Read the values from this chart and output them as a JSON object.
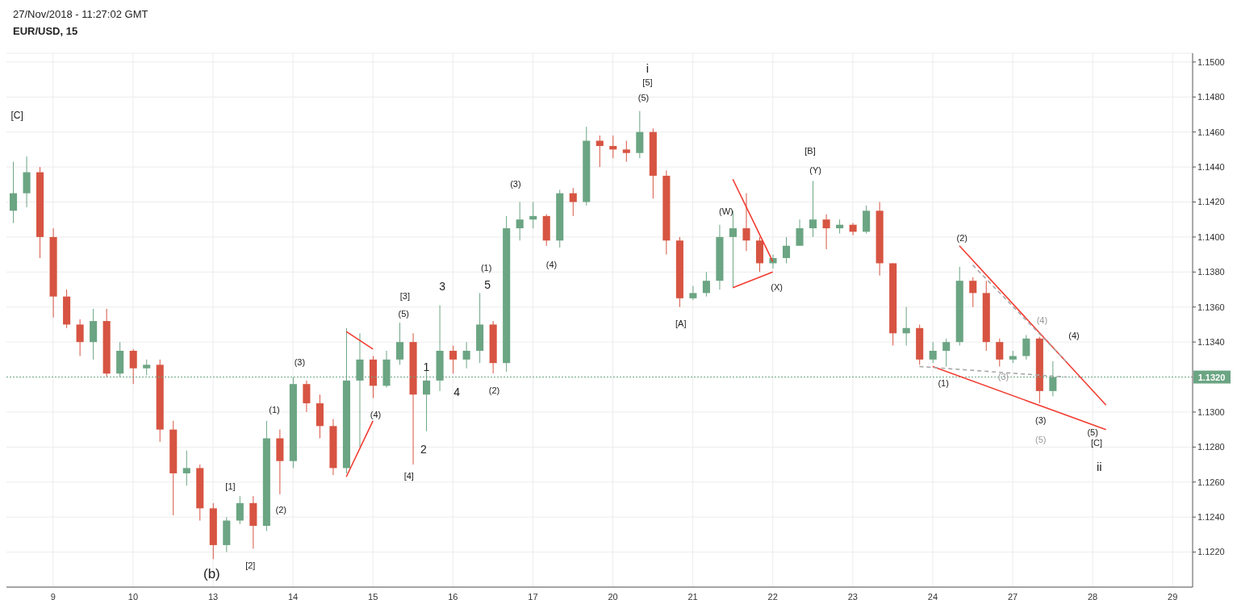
{
  "chart_data": {
    "type": "candlestick",
    "title": "EUR/USD, 15",
    "categories": [
      null,
      null,
      null,
      "9",
      null,
      null,
      null,
      null,
      null,
      "10",
      null,
      null,
      null,
      null,
      null,
      "13",
      null,
      null,
      null,
      null,
      null,
      "14",
      null,
      null,
      null,
      null,
      null,
      "15",
      null,
      null,
      null,
      null,
      null,
      "16",
      null,
      null,
      null,
      null,
      null,
      "17",
      null,
      null,
      null,
      null,
      null,
      "20",
      null,
      null,
      null,
      null,
      null,
      "21",
      null,
      null,
      null,
      null,
      null,
      "22",
      null,
      null,
      null,
      null,
      null,
      "23",
      null,
      null,
      null,
      null,
      null,
      "24",
      null,
      null,
      null,
      null,
      null,
      "27",
      null,
      null,
      null,
      null,
      null,
      "28",
      null,
      null,
      null,
      null,
      null,
      "29",
      null
    ],
    "ohlc": [
      [
        1.1415,
        1.1443,
        1.1408,
        1.1425
      ],
      [
        1.1425,
        1.1446,
        1.1417,
        1.1437
      ],
      [
        1.1437,
        1.144,
        1.1388,
        1.14
      ],
      [
        1.14,
        1.1405,
        1.1354,
        1.1366
      ],
      [
        1.1366,
        1.137,
        1.1348,
        1.135
      ],
      [
        1.135,
        1.1353,
        1.1332,
        1.134
      ],
      [
        1.134,
        1.1359,
        1.133,
        1.1352
      ],
      [
        1.1352,
        1.1359,
        1.132,
        1.1322
      ],
      [
        1.1322,
        1.134,
        1.132,
        1.1335
      ],
      [
        1.1335,
        1.1336,
        1.1316,
        1.1325
      ],
      [
        1.1325,
        1.133,
        1.1321,
        1.1327
      ],
      [
        1.1327,
        1.133,
        1.1283,
        1.129
      ],
      [
        1.129,
        1.1295,
        1.1241,
        1.1265
      ],
      [
        1.1265,
        1.1278,
        1.1258,
        1.1268
      ],
      [
        1.1268,
        1.127,
        1.1238,
        1.1245
      ],
      [
        1.1245,
        1.1248,
        1.1216,
        1.1224
      ],
      [
        1.1224,
        1.124,
        1.122,
        1.1238
      ],
      [
        1.1238,
        1.1252,
        1.1236,
        1.1248
      ],
      [
        1.1248,
        1.1252,
        1.1222,
        1.1235
      ],
      [
        1.1235,
        1.1295,
        1.1232,
        1.1285
      ],
      [
        1.1285,
        1.129,
        1.1253,
        1.1272
      ],
      [
        1.1272,
        1.132,
        1.1268,
        1.1316
      ],
      [
        1.1316,
        1.1318,
        1.13,
        1.1305
      ],
      [
        1.1305,
        1.131,
        1.1285,
        1.1292
      ],
      [
        1.1292,
        1.1296,
        1.1264,
        1.1268
      ],
      [
        1.1268,
        1.1348,
        1.1265,
        1.1318
      ],
      [
        1.1318,
        1.1345,
        1.128,
        1.133
      ],
      [
        1.133,
        1.1332,
        1.1308,
        1.1315
      ],
      [
        1.1315,
        1.1335,
        1.1314,
        1.133
      ],
      [
        1.133,
        1.1351,
        1.1327,
        1.134
      ],
      [
        1.134,
        1.1345,
        1.127,
        1.131
      ],
      [
        1.131,
        1.1325,
        1.1289,
        1.1318
      ],
      [
        1.1318,
        1.1361,
        1.1312,
        1.1335
      ],
      [
        1.1335,
        1.1338,
        1.1322,
        1.133
      ],
      [
        1.133,
        1.134,
        1.1325,
        1.1335
      ],
      [
        1.1335,
        1.1368,
        1.1328,
        1.135
      ],
      [
        1.135,
        1.1352,
        1.1322,
        1.1328
      ],
      [
        1.1328,
        1.1412,
        1.1323,
        1.1405
      ],
      [
        1.1405,
        1.142,
        1.1398,
        1.141
      ],
      [
        1.141,
        1.142,
        1.1405,
        1.1412
      ],
      [
        1.1412,
        1.1413,
        1.1395,
        1.1398
      ],
      [
        1.1398,
        1.1427,
        1.1394,
        1.1425
      ],
      [
        1.1425,
        1.1428,
        1.1412,
        1.142
      ],
      [
        1.142,
        1.1463,
        1.1418,
        1.1455
      ],
      [
        1.1455,
        1.1458,
        1.144,
        1.1452
      ],
      [
        1.1452,
        1.1458,
        1.1445,
        1.145
      ],
      [
        1.145,
        1.1455,
        1.1443,
        1.1448
      ],
      [
        1.1448,
        1.1472,
        1.1445,
        1.146
      ],
      [
        1.146,
        1.1462,
        1.1422,
        1.1435
      ],
      [
        1.1435,
        1.1438,
        1.139,
        1.1398
      ],
      [
        1.1398,
        1.14,
        1.136,
        1.1365
      ],
      [
        1.1365,
        1.1372,
        1.1364,
        1.1368
      ],
      [
        1.1368,
        1.138,
        1.1366,
        1.1375
      ],
      [
        1.1375,
        1.1407,
        1.137,
        1.14
      ],
      [
        1.14,
        1.1415,
        1.1371,
        1.1405
      ],
      [
        1.1405,
        1.1425,
        1.1392,
        1.1398
      ],
      [
        1.1398,
        1.14,
        1.138,
        1.1385
      ],
      [
        1.1385,
        1.139,
        1.1382,
        1.1388
      ],
      [
        1.1388,
        1.14,
        1.1385,
        1.1395
      ],
      [
        1.1395,
        1.141,
        1.1395,
        1.1405
      ],
      [
        1.1405,
        1.1432,
        1.14,
        1.141
      ],
      [
        1.141,
        1.1413,
        1.1393,
        1.1405
      ],
      [
        1.1405,
        1.141,
        1.1402,
        1.1407
      ],
      [
        1.1407,
        1.1408,
        1.1401,
        1.1403
      ],
      [
        1.1403,
        1.1418,
        1.1402,
        1.1415
      ],
      [
        1.1415,
        1.142,
        1.1378,
        1.1385
      ],
      [
        1.1385,
        1.1385,
        1.1338,
        1.1345
      ],
      [
        1.1345,
        1.136,
        1.1338,
        1.1348
      ],
      [
        1.1348,
        1.135,
        1.1327,
        1.133
      ],
      [
        1.133,
        1.134,
        1.1328,
        1.1335
      ],
      [
        1.1335,
        1.1342,
        1.1326,
        1.134
      ],
      [
        1.134,
        1.1383,
        1.1338,
        1.1375
      ],
      [
        1.1375,
        1.1377,
        1.136,
        1.1368
      ],
      [
        1.1368,
        1.1375,
        1.1335,
        1.134
      ],
      [
        1.134,
        1.1342,
        1.1326,
        1.133
      ],
      [
        1.133,
        1.1335,
        1.1328,
        1.1332
      ],
      [
        1.1332,
        1.1344,
        1.133,
        1.1342
      ],
      [
        1.1342,
        1.1343,
        1.1305,
        1.1312
      ],
      [
        1.1312,
        1.1329,
        1.1309,
        1.132
      ],
      null,
      null,
      null,
      null,
      null,
      null,
      null,
      null,
      null,
      null
    ],
    "colors": [
      "#6ba583",
      "#6ba583",
      "#d75442",
      "#d75442",
      "#d75442",
      "#d75442",
      "#6ba583",
      "#d75442",
      "#6ba583",
      "#d75442",
      "#6ba583",
      "#d75442",
      "#d75442",
      "#6ba583",
      "#d75442",
      "#d75442",
      "#6ba583",
      "#6ba583",
      "#d75442",
      "#6ba583",
      "#d75442",
      "#6ba583",
      "#d75442",
      "#d75442",
      "#d75442",
      "#6ba583",
      "#6ba583",
      "#d75442",
      "#6ba583",
      "#6ba583",
      "#d75442",
      "#6ba583",
      "#6ba583",
      "#d75442",
      "#6ba583",
      "#6ba583",
      "#d75442",
      "#6ba583",
      "#6ba583",
      "#6ba583",
      "#d75442",
      "#6ba583",
      "#d75442",
      "#6ba583",
      "#d75442",
      "#d75442",
      "#d75442",
      "#6ba583",
      "#d75442",
      "#d75442",
      "#d75442",
      "#6ba583",
      "#6ba583",
      "#6ba583",
      "#6ba583",
      "#d75442",
      "#d75442",
      "#6ba583",
      "#6ba583",
      "#6ba583",
      "#6ba583",
      "#d75442",
      "#6ba583",
      "#d75442",
      "#6ba583",
      "#d75442",
      "#d75442",
      "#6ba583",
      "#d75442",
      "#6ba583",
      "#6ba583",
      "#6ba583",
      "#d75442",
      "#d75442",
      "#d75442",
      "#6ba583",
      "#6ba583",
      "#d75442",
      "#6ba583",
      null,
      null,
      null,
      null,
      null,
      null,
      null,
      null,
      null,
      null
    ],
    "series": [
      {
        "type": "line",
        "color": "#f23b30",
        "line_style": "solid",
        "values": [
          null,
          null,
          null,
          null,
          null,
          null,
          null,
          null,
          null,
          null,
          null,
          null,
          null,
          null,
          null,
          null,
          null,
          null,
          null,
          null,
          null,
          null,
          null,
          null,
          null,
          1.1346,
          null,
          1.1336,
          null,
          null,
          null,
          null,
          null,
          null,
          null,
          null,
          null,
          null,
          null,
          null,
          null,
          null,
          null,
          null,
          null,
          null,
          null,
          null,
          null,
          null,
          null,
          null,
          null,
          null,
          null,
          null,
          null,
          null,
          null,
          null,
          null,
          null,
          null,
          null,
          null,
          null,
          null,
          null,
          null,
          null,
          null,
          null,
          null,
          null,
          null,
          null,
          null,
          null,
          null,
          null,
          null,
          null,
          null,
          null,
          null,
          null,
          null,
          null,
          null
        ]
      },
      {
        "type": "line",
        "color": "#f23b30",
        "line_style": "solid",
        "values": [
          null,
          null,
          null,
          null,
          null,
          null,
          null,
          null,
          null,
          null,
          null,
          null,
          null,
          null,
          null,
          null,
          null,
          null,
          null,
          null,
          null,
          null,
          null,
          null,
          null,
          1.1263,
          null,
          1.1295,
          null,
          null,
          null,
          null,
          null,
          null,
          null,
          null,
          null,
          null,
          null,
          null,
          null,
          null,
          null,
          null,
          null,
          null,
          null,
          null,
          null,
          null,
          null,
          null,
          null,
          null,
          null,
          null,
          null,
          null,
          null,
          null,
          null,
          null,
          null,
          null,
          null,
          null,
          null,
          null,
          null,
          null,
          null,
          null,
          null,
          null,
          null,
          null,
          null,
          null,
          null,
          null,
          null,
          null,
          null,
          null,
          null,
          null,
          null,
          null,
          null
        ]
      },
      {
        "type": "line",
        "color": "#f23b30",
        "line_style": "solid",
        "values": [
          null,
          null,
          null,
          null,
          null,
          null,
          null,
          null,
          null,
          null,
          null,
          null,
          null,
          null,
          null,
          null,
          null,
          null,
          null,
          null,
          null,
          null,
          null,
          null,
          null,
          null,
          null,
          null,
          null,
          null,
          null,
          null,
          null,
          null,
          null,
          null,
          null,
          null,
          null,
          null,
          null,
          null,
          null,
          null,
          null,
          null,
          null,
          null,
          null,
          null,
          null,
          null,
          null,
          null,
          1.1433,
          null,
          null,
          1.1386,
          null,
          null,
          null,
          null,
          null,
          null,
          null,
          null,
          null,
          null,
          null,
          null,
          null,
          null,
          null,
          null,
          null,
          null,
          null,
          null,
          null,
          null,
          null,
          null,
          null,
          null,
          null,
          null,
          null,
          null,
          null
        ]
      },
      {
        "type": "line",
        "color": "#f23b30",
        "line_style": "solid",
        "values": [
          null,
          null,
          null,
          null,
          null,
          null,
          null,
          null,
          null,
          null,
          null,
          null,
          null,
          null,
          null,
          null,
          null,
          null,
          null,
          null,
          null,
          null,
          null,
          null,
          null,
          null,
          null,
          null,
          null,
          null,
          null,
          null,
          null,
          null,
          null,
          null,
          null,
          null,
          null,
          null,
          null,
          null,
          null,
          null,
          null,
          null,
          null,
          null,
          null,
          null,
          null,
          null,
          null,
          null,
          1.1371,
          null,
          null,
          1.138,
          null,
          null,
          null,
          null,
          null,
          null,
          null,
          null,
          null,
          null,
          null,
          null,
          null,
          null,
          null,
          null,
          null,
          null,
          null,
          null,
          null,
          null,
          null,
          null,
          null,
          null,
          null,
          null,
          null,
          null,
          null
        ]
      },
      {
        "type": "line",
        "color": "#f23b30",
        "line_style": "solid",
        "values": [
          null,
          null,
          null,
          null,
          null,
          null,
          null,
          null,
          null,
          null,
          null,
          null,
          null,
          null,
          null,
          null,
          null,
          null,
          null,
          null,
          null,
          null,
          null,
          null,
          null,
          null,
          null,
          null,
          null,
          null,
          null,
          null,
          null,
          null,
          null,
          null,
          null,
          null,
          null,
          null,
          null,
          null,
          null,
          null,
          null,
          null,
          null,
          null,
          null,
          null,
          null,
          null,
          null,
          null,
          null,
          null,
          null,
          null,
          null,
          null,
          null,
          null,
          null,
          null,
          null,
          null,
          null,
          null,
          null,
          null,
          null,
          1.1395,
          null,
          null,
          null,
          null,
          null,
          null,
          null,
          null,
          null,
          null,
          1.1304,
          null,
          null,
          null,
          null,
          null,
          null
        ]
      },
      {
        "type": "line",
        "color": "#f23b30",
        "line_style": "solid",
        "values": [
          null,
          null,
          null,
          null,
          null,
          null,
          null,
          null,
          null,
          null,
          null,
          null,
          null,
          null,
          null,
          null,
          null,
          null,
          null,
          null,
          null,
          null,
          null,
          null,
          null,
          null,
          null,
          null,
          null,
          null,
          null,
          null,
          null,
          null,
          null,
          null,
          null,
          null,
          null,
          null,
          null,
          null,
          null,
          null,
          null,
          null,
          null,
          null,
          null,
          null,
          null,
          null,
          null,
          null,
          null,
          null,
          null,
          null,
          null,
          null,
          null,
          null,
          null,
          null,
          null,
          null,
          null,
          null,
          null,
          1.1326,
          null,
          null,
          null,
          null,
          null,
          null,
          null,
          null,
          null,
          null,
          null,
          null,
          1.129,
          null,
          null,
          null,
          null,
          null,
          null
        ]
      },
      {
        "type": "line",
        "color": "#a8a8a8",
        "line_style": "dashed",
        "values": [
          null,
          null,
          null,
          null,
          null,
          null,
          null,
          null,
          null,
          null,
          null,
          null,
          null,
          null,
          null,
          null,
          null,
          null,
          null,
          null,
          null,
          null,
          null,
          null,
          null,
          null,
          null,
          null,
          null,
          null,
          null,
          null,
          null,
          null,
          null,
          null,
          null,
          null,
          null,
          null,
          null,
          null,
          null,
          null,
          null,
          null,
          null,
          null,
          null,
          null,
          null,
          null,
          null,
          null,
          null,
          null,
          null,
          null,
          null,
          null,
          null,
          null,
          null,
          null,
          null,
          null,
          null,
          null,
          null,
          null,
          null,
          null,
          1.1384,
          null,
          null,
          null,
          null,
          null,
          null,
          1.1329,
          null,
          null,
          null,
          null,
          null,
          null,
          null,
          null,
          null
        ]
      },
      {
        "type": "line",
        "color": "#a8a8a8",
        "line_style": "dashed",
        "values": [
          null,
          null,
          null,
          null,
          null,
          null,
          null,
          null,
          null,
          null,
          null,
          null,
          null,
          null,
          null,
          null,
          null,
          null,
          null,
          null,
          null,
          null,
          null,
          null,
          null,
          null,
          null,
          null,
          null,
          null,
          null,
          null,
          null,
          null,
          null,
          null,
          null,
          null,
          null,
          null,
          null,
          null,
          null,
          null,
          null,
          null,
          null,
          null,
          null,
          null,
          null,
          null,
          null,
          null,
          null,
          null,
          null,
          null,
          null,
          null,
          null,
          null,
          null,
          null,
          null,
          null,
          null,
          null,
          1.1326,
          null,
          null,
          null,
          null,
          null,
          null,
          null,
          null,
          null,
          null,
          1.132,
          null,
          null,
          null,
          null,
          null,
          null,
          null,
          null,
          null
        ]
      }
    ],
    "ylim": [
      1.12,
      1.1505
    ],
    "yticks": [
      {
        "value": 1.122,
        "label": "1.1220"
      },
      {
        "value": 1.124,
        "label": "1.1240"
      },
      {
        "value": 1.126,
        "label": "1.1260"
      },
      {
        "value": 1.128,
        "label": "1.1280"
      },
      {
        "value": 1.13,
        "label": "1.1300"
      },
      {
        "value": 1.134,
        "label": "1.1340"
      },
      {
        "value": 1.136,
        "label": "1.1360"
      },
      {
        "value": 1.138,
        "label": "1.1380"
      },
      {
        "value": 1.14,
        "label": "1.1400"
      },
      {
        "value": 1.142,
        "label": "1.1420"
      },
      {
        "value": 1.144,
        "label": "1.1440"
      },
      {
        "value": 1.146,
        "label": "1.1460"
      },
      {
        "value": 1.148,
        "label": "1.1480"
      },
      {
        "value": 1.15,
        "label": "1.1500"
      }
    ],
    "grid": true,
    "ref_lines": [
      {
        "axis": "y",
        "value": 1.132,
        "label": "1.1320",
        "color": "#6ba583",
        "line_style": "dotted"
      }
    ],
    "annotations": [
      "27/Nov/2018 - 11:27:02 GMT",
      "[C]",
      "(b)",
      "[1]",
      "[2]",
      "(1)",
      "(2)",
      "(3)",
      "(4)",
      "[3]",
      "(5)",
      "[4]",
      "1",
      "2",
      "3",
      "4",
      "5",
      "(1)",
      "(2)",
      "(3)",
      "(4)",
      "i",
      "[5]",
      "(5)",
      "[A]",
      "(W)",
      "(X)",
      "[B]",
      "(Y)",
      "(1)",
      "(2)",
      "(3)",
      "(4)",
      "(4)",
      "(3)",
      "(5)",
      "(5)",
      "[C]",
      "ii"
    ]
  }
}
